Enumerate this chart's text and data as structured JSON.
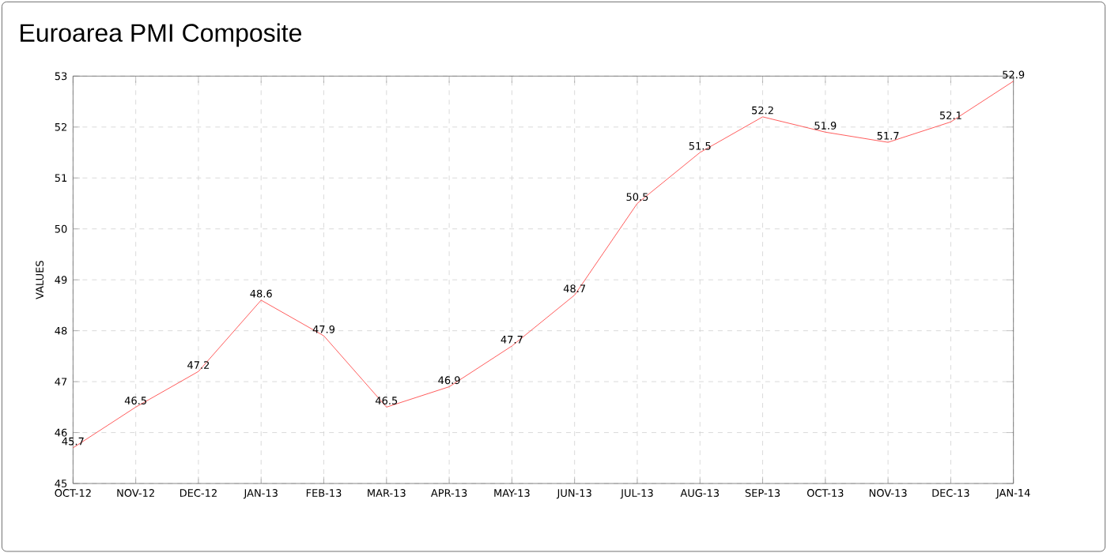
{
  "chart_data": {
    "type": "line",
    "title": "Euroarea PMI Composite",
    "ylabel": "VALUES",
    "categories": [
      "OCT-12",
      "NOV-12",
      "DEC-12",
      "JAN-13",
      "FEB-13",
      "MAR-13",
      "APR-13",
      "MAY-13",
      "JUN-13",
      "JUL-13",
      "AUG-13",
      "SEP-13",
      "OCT-13",
      "NOV-13",
      "DEC-13",
      "JAN-14"
    ],
    "values": [
      45.7,
      46.5,
      47.2,
      48.6,
      47.9,
      46.5,
      46.9,
      47.7,
      48.7,
      50.5,
      51.5,
      52.2,
      51.9,
      51.7,
      52.1,
      52.9
    ],
    "color": "#ff3333",
    "ylim": [
      45,
      53
    ],
    "yticks": [
      45,
      46,
      47,
      48,
      49,
      50,
      51,
      52,
      53
    ],
    "grid": true,
    "data_labels": true,
    "marker": "none",
    "line_style": "solid"
  }
}
